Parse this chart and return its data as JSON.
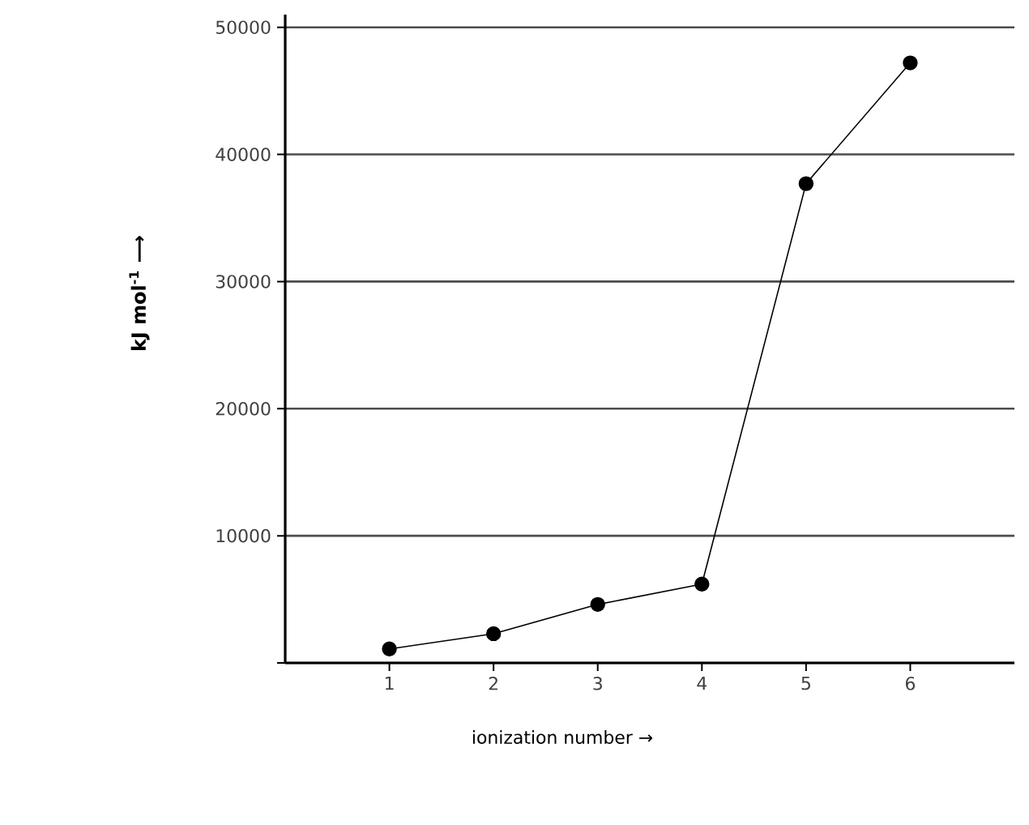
{
  "chart_data": {
    "type": "line",
    "xlabel": "ionization number →",
    "ylabel": "kJ mol$^{-1}$ ⟶",
    "x": [
      1,
      2,
      3,
      4,
      5,
      6
    ],
    "series": [
      {
        "color": "#000000",
        "values": [
          1100,
          2300,
          4600,
          6200,
          37700,
          47200
        ]
      }
    ],
    "xlim": [
      0,
      7
    ],
    "xticks": [
      1,
      2,
      3,
      4,
      5,
      6
    ],
    "ylim": [
      0,
      51000
    ],
    "yticks": [
      {
        "value": 0,
        "label": null
      },
      10000,
      20000,
      30000,
      40000,
      50000
    ],
    "grid": "y",
    "marker": "circle",
    "line_style": "solid"
  }
}
